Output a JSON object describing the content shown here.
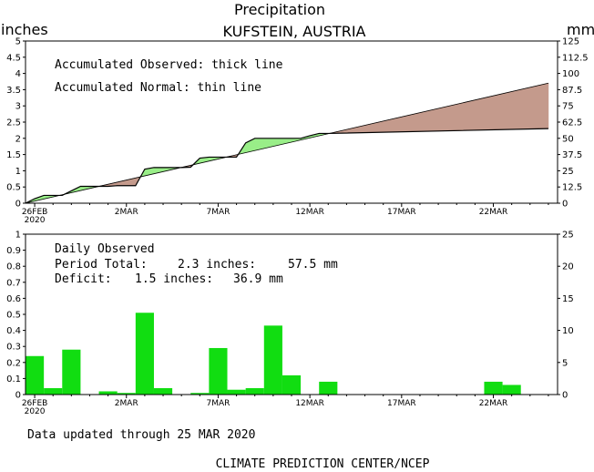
{
  "header": {
    "title": "Precipitation",
    "location": "KUFSTEIN, AUSTRIA",
    "left_unit": "inches",
    "right_unit": "mm"
  },
  "top_panel": {
    "legend_line_1": "Accumulated Observed: thick line",
    "legend_line_2": "Accumulated Normal: thin line"
  },
  "bottom_panel": {
    "label_daily": "Daily Observed",
    "label_period": "Period Total:",
    "period_inches": "2.3 inches:",
    "period_mm": "57.5 mm",
    "label_deficit": "Deficit:",
    "deficit_inches": "1.5 inches:",
    "deficit_mm": "36.9 mm"
  },
  "footer": {
    "updated": "Data updated through 25 MAR 2020",
    "credit": "CLIMATE PREDICTION CENTER/NCEP"
  },
  "colors": {
    "surplus": "#99ee88",
    "deficit": "#c49a8c",
    "bars": "#11dd11",
    "frame": "#000000"
  },
  "chart_data": [
    {
      "type": "area",
      "ylim": [
        0,
        5
      ],
      "ylim_right": [
        0,
        125
      ],
      "yticks_left": [
        "0",
        "0.5",
        "1",
        "1.5",
        "2",
        "2.5",
        "3",
        "3.5",
        "4",
        "4.5",
        "5"
      ],
      "yticks_right": [
        "0",
        "12.5",
        "25",
        "37.5",
        "50",
        "62.5",
        "75",
        "87.5",
        "100",
        "112.5",
        "125"
      ],
      "x_labels": [
        {
          "day": 0,
          "text": "26FEB"
        },
        {
          "day": 5,
          "text": "2MAR"
        },
        {
          "day": 10,
          "text": "7MAR"
        },
        {
          "day": 15,
          "text": "12MAR"
        },
        {
          "day": 20,
          "text": "17MAR"
        },
        {
          "day": 25,
          "text": "22MAR"
        }
      ],
      "x_sublabel": "2020",
      "x_range": [
        -0.5,
        28.5
      ],
      "series": [
        {
          "name": "Accumulated Observed",
          "x": [
            -0.5,
            0,
            0.5,
            1,
            1.5,
            2,
            2.5,
            3,
            3.5,
            4,
            4.5,
            5,
            5.5,
            6,
            6.5,
            7,
            7.5,
            8,
            8.5,
            9,
            9.5,
            10,
            10.5,
            11,
            11.5,
            12,
            12.5,
            13,
            13.5,
            14,
            14.5,
            15,
            15.5,
            16,
            28
          ],
          "values": [
            0,
            0.14,
            0.24,
            0.24,
            0.24,
            0.38,
            0.52,
            0.52,
            0.52,
            0.52,
            0.54,
            0.54,
            0.54,
            1.05,
            1.1,
            1.1,
            1.1,
            1.1,
            1.11,
            1.39,
            1.42,
            1.42,
            1.42,
            1.42,
            1.86,
            2.0,
            2.0,
            2.0,
            2.0,
            2.0,
            2.0,
            2.08,
            2.15,
            2.15,
            2.3
          ]
        },
        {
          "name": "Accumulated Normal",
          "x": [
            -0.5,
            28
          ],
          "values": [
            0,
            3.7
          ]
        }
      ]
    },
    {
      "type": "bar",
      "ylim": [
        0,
        1
      ],
      "ylim_right": [
        0,
        25
      ],
      "yticks_left": [
        "0",
        "0.1",
        "0.2",
        "0.3",
        "0.4",
        "0.5",
        "0.6",
        "0.7",
        "0.8",
        "0.9",
        "1"
      ],
      "yticks_right": [
        "0",
        "5",
        "10",
        "15",
        "20",
        "25"
      ],
      "x_labels": [
        {
          "day": 0,
          "text": "26FEB"
        },
        {
          "day": 5,
          "text": "2MAR"
        },
        {
          "day": 10,
          "text": "7MAR"
        },
        {
          "day": 15,
          "text": "12MAR"
        },
        {
          "day": 20,
          "text": "17MAR"
        },
        {
          "day": 25,
          "text": "22MAR"
        }
      ],
      "x_sublabel": "2020",
      "x_range": [
        -0.5,
        28.5
      ],
      "days": [
        0,
        1,
        2,
        3,
        4,
        5,
        6,
        7,
        8,
        9,
        10,
        11,
        12,
        13,
        14,
        15,
        16,
        17,
        18,
        19,
        20,
        21,
        22,
        23,
        24,
        25,
        26,
        27,
        28
      ],
      "values": [
        0.24,
        0.04,
        0.28,
        0,
        0.02,
        0.01,
        0.51,
        0.04,
        0,
        0.01,
        0.29,
        0.03,
        0.04,
        0.43,
        0.12,
        0,
        0.08,
        0,
        0,
        0,
        0,
        0,
        0,
        0,
        0,
        0.08,
        0.06,
        0,
        0
      ]
    }
  ]
}
